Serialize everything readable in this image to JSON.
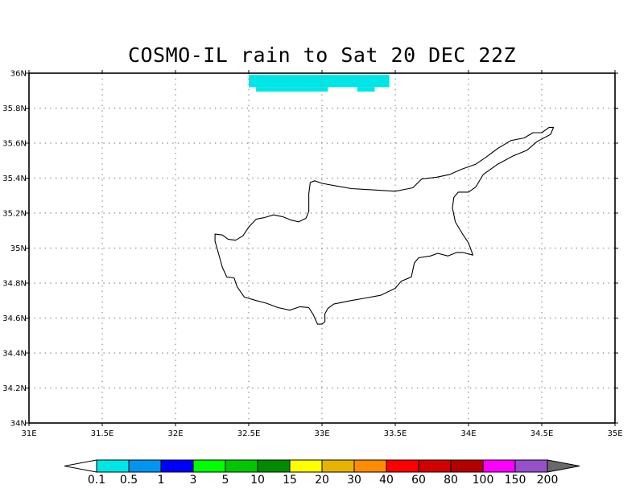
{
  "title": "COSMO-IL rain to Sat 20 DEC 22Z",
  "map": {
    "lon_range": [
      31,
      35
    ],
    "lat_range": [
      34,
      36
    ],
    "lon_ticks": [
      {
        "value": 31,
        "label": "31E"
      },
      {
        "value": 31.5,
        "label": "31.5E"
      },
      {
        "value": 32,
        "label": "32E"
      },
      {
        "value": 32.5,
        "label": "32.5E"
      },
      {
        "value": 33,
        "label": "33E"
      },
      {
        "value": 33.5,
        "label": "33.5E"
      },
      {
        "value": 34,
        "label": "34E"
      },
      {
        "value": 34.5,
        "label": "34.5E"
      },
      {
        "value": 35,
        "label": "35E"
      }
    ],
    "lat_ticks": [
      {
        "value": 34,
        "label": "34N"
      },
      {
        "value": 34.2,
        "label": "34.2N"
      },
      {
        "value": 34.4,
        "label": "34.4N"
      },
      {
        "value": 34.6,
        "label": "34.6N"
      },
      {
        "value": 34.8,
        "label": "34.8N"
      },
      {
        "value": 35,
        "label": "35N"
      },
      {
        "value": 35.2,
        "label": "35.2N"
      },
      {
        "value": 35.4,
        "label": "35.4N"
      },
      {
        "value": 35.6,
        "label": "35.6N"
      },
      {
        "value": 35.8,
        "label": "35.8N"
      },
      {
        "value": 36,
        "label": "36N"
      }
    ],
    "grid": true,
    "coastline_lonlat": [
      [
        32.27,
        35.08
      ],
      [
        32.32,
        35.075
      ],
      [
        32.36,
        35.05
      ],
      [
        32.41,
        35.045
      ],
      [
        32.46,
        35.07
      ],
      [
        32.5,
        35.12
      ],
      [
        32.55,
        35.165
      ],
      [
        32.61,
        35.175
      ],
      [
        32.67,
        35.19
      ],
      [
        32.73,
        35.18
      ],
      [
        32.79,
        35.16
      ],
      [
        32.84,
        35.15
      ],
      [
        32.89,
        35.17
      ],
      [
        32.91,
        35.21
      ],
      [
        32.91,
        35.26
      ],
      [
        32.91,
        35.31
      ],
      [
        32.92,
        35.375
      ],
      [
        32.95,
        35.385
      ],
      [
        33.0,
        35.37
      ],
      [
        33.1,
        35.355
      ],
      [
        33.2,
        35.34
      ],
      [
        33.3,
        35.335
      ],
      [
        33.4,
        35.33
      ],
      [
        33.5,
        35.325
      ],
      [
        33.62,
        35.345
      ],
      [
        33.68,
        35.395
      ],
      [
        33.78,
        35.405
      ],
      [
        33.87,
        35.42
      ],
      [
        33.95,
        35.45
      ],
      [
        34.05,
        35.48
      ],
      [
        34.12,
        35.52
      ],
      [
        34.2,
        35.57
      ],
      [
        34.29,
        35.615
      ],
      [
        34.38,
        35.63
      ],
      [
        34.44,
        35.66
      ],
      [
        34.5,
        35.66
      ],
      [
        34.55,
        35.69
      ],
      [
        34.58,
        35.69
      ],
      [
        34.56,
        35.65
      ],
      [
        34.47,
        35.61
      ],
      [
        34.4,
        35.56
      ],
      [
        34.3,
        35.525
      ],
      [
        34.2,
        35.48
      ],
      [
        34.1,
        35.42
      ],
      [
        34.05,
        35.35
      ],
      [
        34.0,
        35.32
      ],
      [
        33.93,
        35.32
      ],
      [
        33.9,
        35.29
      ],
      [
        33.89,
        35.23
      ],
      [
        33.91,
        35.15
      ],
      [
        33.96,
        35.08
      ],
      [
        34.0,
        35.03
      ],
      [
        34.03,
        34.96
      ],
      [
        33.96,
        34.975
      ],
      [
        33.92,
        34.975
      ],
      [
        33.86,
        34.955
      ],
      [
        33.79,
        34.97
      ],
      [
        33.74,
        34.955
      ],
      [
        33.66,
        34.945
      ],
      [
        33.63,
        34.915
      ],
      [
        33.61,
        34.835
      ],
      [
        33.54,
        34.81
      ],
      [
        33.5,
        34.77
      ],
      [
        33.4,
        34.73
      ],
      [
        33.3,
        34.715
      ],
      [
        33.2,
        34.7
      ],
      [
        33.08,
        34.68
      ],
      [
        33.04,
        34.655
      ],
      [
        33.02,
        34.625
      ],
      [
        33.02,
        34.58
      ],
      [
        33.0,
        34.565
      ],
      [
        32.97,
        34.565
      ],
      [
        32.94,
        34.62
      ],
      [
        32.91,
        34.66
      ],
      [
        32.85,
        34.665
      ],
      [
        32.78,
        34.645
      ],
      [
        32.7,
        34.66
      ],
      [
        32.62,
        34.685
      ],
      [
        32.55,
        34.7
      ],
      [
        32.47,
        34.72
      ],
      [
        32.42,
        34.78
      ],
      [
        32.4,
        34.83
      ],
      [
        32.35,
        34.835
      ],
      [
        32.32,
        34.89
      ],
      [
        32.29,
        34.98
      ],
      [
        32.27,
        35.04
      ],
      [
        32.27,
        35.08
      ]
    ],
    "rain_cells": [
      {
        "lon0": 32.5,
        "lon1": 33.46,
        "lat0": 35.92,
        "lat1": 35.99,
        "category": "0.1-0.5"
      },
      {
        "lon0": 32.55,
        "lon1": 33.04,
        "lat0": 35.895,
        "lat1": 35.92,
        "category": "0.1-0.5"
      },
      {
        "lon0": 33.24,
        "lon1": 33.36,
        "lat0": 35.895,
        "lat1": 35.92,
        "category": "0.1-0.5"
      }
    ]
  },
  "colorbar": {
    "labels": [
      "0.1",
      "0.5",
      "1",
      "3",
      "5",
      "10",
      "15",
      "20",
      "30",
      "40",
      "60",
      "80",
      "100",
      "150",
      "200"
    ],
    "colors": [
      "#00e6e6",
      "#0096f0",
      "#0000ff",
      "#00ff00",
      "#00c800",
      "#008c00",
      "#ffff00",
      "#e6b400",
      "#ff8c00",
      "#ff0000",
      "#d20000",
      "#b40000",
      "#ff00ff",
      "#9650c8"
    ],
    "under_color": "#ffffff",
    "over_color": "#696969"
  }
}
